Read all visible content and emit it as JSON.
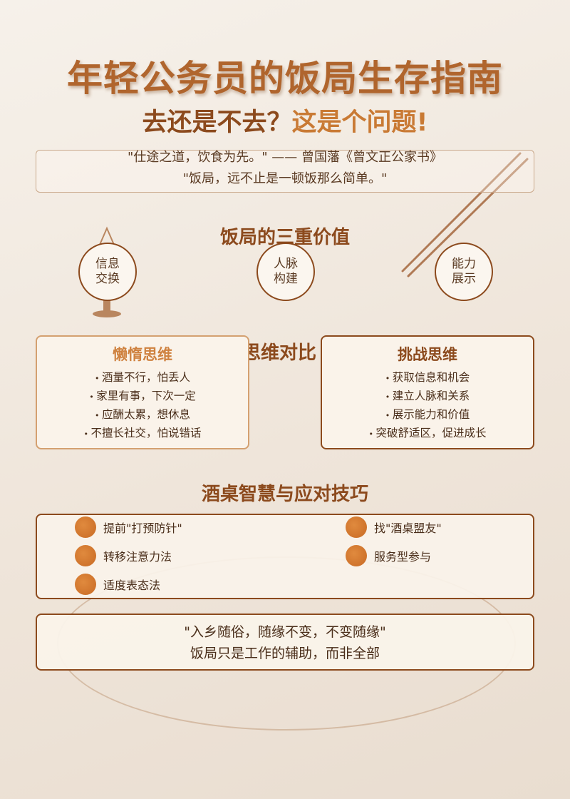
{
  "header": {
    "title": "年轻公务员的饭局生存指南",
    "subtitle_main": "去还是不去？",
    "subtitle_accent": "这是个问题!"
  },
  "quotes": {
    "line1": "\"仕途之道，饮食为先。\" —— 曾国藩《曾文正公家书》",
    "line2": "\"饭局，远不止是一顿饭那么简单。\""
  },
  "values": {
    "title": "饭局的三重价值",
    "items": [
      {
        "line1": "信息",
        "line2": "交换"
      },
      {
        "line1": "人脉",
        "line2": "构建"
      },
      {
        "line1": "能力",
        "line2": "展示"
      }
    ]
  },
  "compare": {
    "title": "思维对比",
    "lazy": {
      "title": "懒惰思维",
      "items": [
        "酒量不行，怕丢人",
        "家里有事，下次一定",
        "应酬太累，想休息",
        "不擅长社交，怕说错话"
      ]
    },
    "challenge": {
      "title": "挑战思维",
      "items": [
        "获取信息和机会",
        "建立人脉和关系",
        "展示能力和价值",
        "突破舒适区，促进成长"
      ]
    }
  },
  "tips": {
    "title": "酒桌智慧与应对技巧",
    "items": [
      "提前\"打预防针\"",
      "找\"酒桌盟友\"",
      "转移注意力法",
      "服务型参与",
      "适度表态法"
    ]
  },
  "closing": {
    "line1": "\"入乡随俗，随缘不变，不变随缘\"",
    "line2": "饭局只是工作的辅助，而非全部"
  },
  "colors": {
    "accent": "#c97a34",
    "dark_brown": "#8c4a1d",
    "background": "#f3ece3"
  }
}
